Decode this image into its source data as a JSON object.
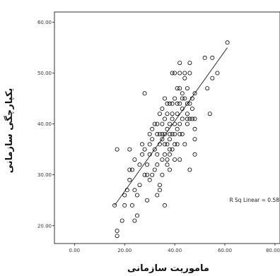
{
  "chart_data": {
    "type": "scatter",
    "xlabel": "ماموریت سازمانی",
    "ylabel": "یکپارچگی سازمانی",
    "xlim": [
      -8,
      82
    ],
    "ylim": [
      16.5,
      62
    ],
    "x_ticks": [
      "0.00",
      "20.00",
      "40.00",
      "60.00",
      "80.00"
    ],
    "y_ticks": [
      "20.00",
      "30.00",
      "40.00",
      "50.00",
      "60.00"
    ],
    "annotation": "R Sq Linear = 0.58",
    "fit_line": {
      "x": [
        16,
        61
      ],
      "y": [
        24,
        55
      ]
    },
    "grid": false,
    "points": [
      [
        16,
        24
      ],
      [
        17,
        19
      ],
      [
        17,
        18
      ],
      [
        17,
        35
      ],
      [
        19,
        21
      ],
      [
        20,
        24
      ],
      [
        20,
        26
      ],
      [
        21,
        27
      ],
      [
        22,
        29
      ],
      [
        22,
        31
      ],
      [
        22,
        35
      ],
      [
        23,
        31
      ],
      [
        23,
        24
      ],
      [
        24,
        27
      ],
      [
        24,
        33
      ],
      [
        24,
        21
      ],
      [
        25,
        22
      ],
      [
        25,
        26
      ],
      [
        26,
        28
      ],
      [
        26,
        32
      ],
      [
        27,
        34
      ],
      [
        27,
        36
      ],
      [
        28,
        35
      ],
      [
        28,
        30
      ],
      [
        28,
        46
      ],
      [
        29,
        25
      ],
      [
        29,
        30
      ],
      [
        29,
        32
      ],
      [
        30,
        34
      ],
      [
        30,
        29
      ],
      [
        30,
        36
      ],
      [
        30,
        38
      ],
      [
        31,
        30
      ],
      [
        31,
        37
      ],
      [
        31,
        39
      ],
      [
        32,
        40
      ],
      [
        32,
        31
      ],
      [
        32,
        35
      ],
      [
        33,
        26
      ],
      [
        33,
        34
      ],
      [
        33,
        38
      ],
      [
        33,
        40
      ],
      [
        33,
        32
      ],
      [
        34,
        27
      ],
      [
        34,
        36
      ],
      [
        34,
        38
      ],
      [
        34,
        42
      ],
      [
        34,
        28
      ],
      [
        35,
        40
      ],
      [
        35,
        33
      ],
      [
        35,
        38
      ],
      [
        35,
        43
      ],
      [
        35,
        37
      ],
      [
        35,
        30
      ],
      [
        36,
        41
      ],
      [
        36,
        38
      ],
      [
        36,
        36
      ],
      [
        36,
        24
      ],
      [
        36,
        34
      ],
      [
        36,
        45
      ],
      [
        37,
        39
      ],
      [
        37,
        36
      ],
      [
        37,
        44
      ],
      [
        37,
        32
      ],
      [
        37,
        33
      ],
      [
        37,
        42
      ],
      [
        38,
        38
      ],
      [
        38,
        44
      ],
      [
        38,
        35
      ],
      [
        38,
        40
      ],
      [
        38,
        37
      ],
      [
        38,
        34
      ],
      [
        38,
        31
      ],
      [
        39,
        50
      ],
      [
        39,
        44
      ],
      [
        39,
        42
      ],
      [
        39,
        38
      ],
      [
        39,
        35
      ],
      [
        39,
        41
      ],
      [
        40,
        40
      ],
      [
        40,
        45
      ],
      [
        40,
        33
      ],
      [
        40,
        36
      ],
      [
        40,
        50
      ],
      [
        40,
        38
      ],
      [
        41,
        44
      ],
      [
        41,
        42
      ],
      [
        41,
        39
      ],
      [
        41,
        36
      ],
      [
        41,
        47
      ],
      [
        42,
        52
      ],
      [
        42,
        50
      ],
      [
        42,
        47
      ],
      [
        42,
        40
      ],
      [
        42,
        33
      ],
      [
        42,
        38
      ],
      [
        42,
        44
      ],
      [
        43,
        46
      ],
      [
        43,
        43
      ],
      [
        43,
        41
      ],
      [
        43,
        45
      ],
      [
        43,
        38
      ],
      [
        44,
        50
      ],
      [
        44,
        49
      ],
      [
        44,
        45
      ],
      [
        44,
        36
      ],
      [
        45,
        41
      ],
      [
        45,
        44
      ],
      [
        45,
        47
      ],
      [
        45,
        42
      ],
      [
        45,
        40
      ],
      [
        46,
        52
      ],
      [
        46,
        50
      ],
      [
        46,
        31
      ],
      [
        46,
        44
      ],
      [
        46,
        41
      ],
      [
        47,
        45
      ],
      [
        47,
        43
      ],
      [
        47,
        41
      ],
      [
        48,
        41
      ],
      [
        48,
        46
      ],
      [
        48,
        37
      ],
      [
        48,
        39
      ],
      [
        48,
        34
      ],
      [
        52,
        53
      ],
      [
        53,
        47
      ],
      [
        54,
        42
      ],
      [
        55,
        49
      ],
      [
        55,
        53
      ],
      [
        57,
        50
      ],
      [
        61,
        56
      ]
    ]
  }
}
